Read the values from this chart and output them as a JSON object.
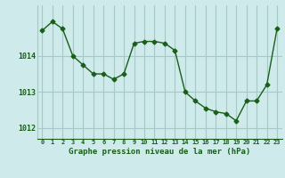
{
  "x": [
    0,
    1,
    2,
    3,
    4,
    5,
    6,
    7,
    8,
    9,
    10,
    11,
    12,
    13,
    14,
    15,
    16,
    17,
    18,
    19,
    20,
    21,
    22,
    23
  ],
  "y": [
    1014.7,
    1014.95,
    1014.75,
    1014.0,
    1013.75,
    1013.5,
    1013.5,
    1013.35,
    1013.5,
    1014.35,
    1014.4,
    1014.4,
    1014.35,
    1014.15,
    1013.0,
    1012.75,
    1012.55,
    1012.45,
    1012.4,
    1012.2,
    1012.75,
    1012.75,
    1013.2,
    1014.75
  ],
  "line_color": "#1a5e1a",
  "marker": "D",
  "markersize": 2.5,
  "linewidth": 1.0,
  "background_color": "#ceeaea",
  "grid_color": "#a8c8c8",
  "tick_label_color": "#1a5e1a",
  "xlabel": "Graphe pression niveau de la mer (hPa)",
  "xlabel_fontsize": 6.5,
  "ylabel_ticks": [
    1012,
    1013,
    1014
  ],
  "xlim": [
    -0.5,
    23.5
  ],
  "ylim": [
    1011.7,
    1015.4
  ]
}
